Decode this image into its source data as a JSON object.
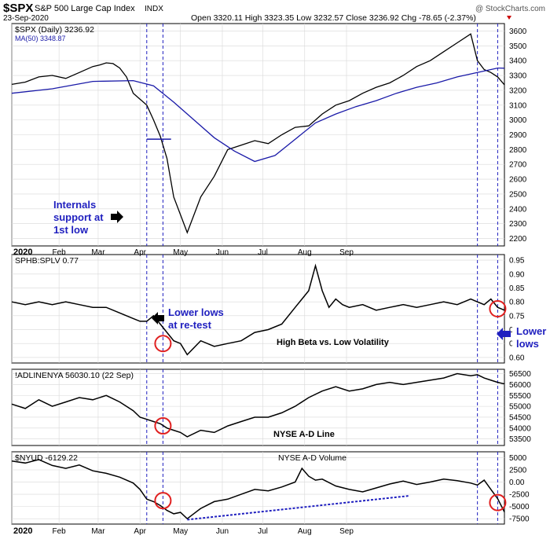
{
  "header": {
    "ticker": "$SPX",
    "name": "S&P 500 Large Cap Index",
    "exchange": "INDX",
    "date": "23-Sep-2020",
    "ohlc": "Open 3320.11  High 3323.35  Low 3232.57  Close 3236.92  Chg -78.65 (-2.37%)",
    "watermark": "@ StockCharts.com"
  },
  "colors": {
    "price": "#000000",
    "ma": "#1a1aa8",
    "annotation": "#1f1fbf",
    "marker": "#e02020",
    "grid": "#d8d8d8"
  },
  "chart_data": [
    {
      "type": "line",
      "id": "spx",
      "legend": [
        "$SPX (Daily) 3236.92",
        "MA(50) 3348.87"
      ],
      "ylim": [
        2150,
        3650
      ],
      "yticks": [
        3600,
        3500,
        3400,
        3300,
        3200,
        3100,
        3000,
        2900,
        2800,
        2700,
        2600,
        2500,
        2400,
        2300,
        2200
      ],
      "series": [
        {
          "name": "$SPX",
          "x": [
            0,
            10,
            20,
            30,
            40,
            50,
            60,
            65,
            70,
            75,
            80,
            85,
            90,
            95,
            100,
            105,
            110,
            115,
            120,
            130,
            140,
            150,
            160,
            170,
            180,
            190,
            200,
            210,
            220,
            230,
            240,
            250,
            260,
            270,
            280,
            290,
            300,
            310,
            320,
            330,
            340,
            345,
            350,
            355,
            360,
            365
          ],
          "values": [
            3240,
            3255,
            3290,
            3300,
            3280,
            3320,
            3360,
            3370,
            3385,
            3380,
            3350,
            3290,
            3180,
            3140,
            3100,
            3000,
            2890,
            2740,
            2480,
            2240,
            2480,
            2620,
            2800,
            2830,
            2860,
            2840,
            2900,
            2950,
            2960,
            3040,
            3100,
            3130,
            3180,
            3220,
            3250,
            3300,
            3360,
            3400,
            3460,
            3520,
            3580,
            3400,
            3340,
            3320,
            3290,
            3237
          ]
        },
        {
          "name": "MA(50)",
          "x": [
            0,
            30,
            60,
            90,
            105,
            120,
            135,
            150,
            165,
            180,
            195,
            210,
            225,
            240,
            255,
            270,
            285,
            300,
            315,
            330,
            345,
            360,
            365
          ],
          "values": [
            3180,
            3210,
            3260,
            3265,
            3230,
            3120,
            3000,
            2880,
            2790,
            2720,
            2760,
            2870,
            2980,
            3040,
            3090,
            3130,
            3180,
            3220,
            3250,
            3290,
            3320,
            3350,
            3349
          ]
        }
      ],
      "hline": {
        "value": 2870,
        "x": [
          100,
          118
        ]
      }
    },
    {
      "type": "line",
      "id": "sphb",
      "legend": [
        "SPHB:SPLV 0.77"
      ],
      "ylim": [
        0.58,
        0.97
      ],
      "yticks": [
        0.95,
        0.9,
        0.85,
        0.8,
        0.75,
        0.7,
        0.65,
        0.6
      ],
      "series": [
        {
          "name": "SPHB:SPLV",
          "x": [
            0,
            10,
            20,
            30,
            40,
            50,
            60,
            70,
            80,
            90,
            95,
            100,
            105,
            110,
            115,
            120,
            125,
            130,
            140,
            150,
            160,
            170,
            180,
            190,
            200,
            210,
            215,
            220,
            225,
            230,
            235,
            240,
            245,
            250,
            260,
            270,
            280,
            290,
            300,
            310,
            320,
            330,
            340,
            345,
            350,
            355,
            360,
            365
          ],
          "values": [
            0.8,
            0.79,
            0.8,
            0.79,
            0.8,
            0.79,
            0.78,
            0.78,
            0.76,
            0.74,
            0.73,
            0.73,
            0.75,
            0.72,
            0.69,
            0.66,
            0.65,
            0.61,
            0.66,
            0.64,
            0.65,
            0.66,
            0.69,
            0.7,
            0.72,
            0.78,
            0.81,
            0.84,
            0.93,
            0.84,
            0.78,
            0.81,
            0.79,
            0.78,
            0.79,
            0.77,
            0.78,
            0.79,
            0.78,
            0.79,
            0.8,
            0.79,
            0.81,
            0.8,
            0.79,
            0.81,
            0.78,
            0.77
          ]
        }
      ],
      "annotations": [
        "Lower lows",
        "at re-test",
        "High Beta vs. Low Volatility"
      ]
    },
    {
      "type": "line",
      "id": "adline",
      "legend": [
        "!ADLINENYA 56030.10 (22 Sep)"
      ],
      "ylim": [
        53200,
        56700
      ],
      "yticks": [
        56500,
        56000,
        55500,
        55000,
        54500,
        54000,
        53500
      ],
      "series": [
        {
          "name": "!ADLINENYA",
          "x": [
            0,
            10,
            20,
            30,
            40,
            50,
            60,
            70,
            80,
            90,
            95,
            100,
            105,
            110,
            115,
            120,
            125,
            130,
            140,
            150,
            160,
            170,
            180,
            190,
            200,
            210,
            220,
            230,
            240,
            250,
            260,
            270,
            280,
            290,
            300,
            310,
            320,
            330,
            340,
            345,
            350,
            355,
            360,
            365
          ],
          "values": [
            55100,
            54900,
            55300,
            55000,
            55200,
            55400,
            55300,
            55500,
            55200,
            54800,
            54500,
            54400,
            54300,
            54200,
            54000,
            53900,
            53800,
            53600,
            53900,
            53800,
            54100,
            54300,
            54500,
            54500,
            54700,
            55000,
            55400,
            55700,
            55900,
            55700,
            55800,
            56000,
            56100,
            56000,
            56100,
            56200,
            56300,
            56500,
            56400,
            56450,
            56300,
            56200,
            56100,
            56030
          ]
        }
      ],
      "annotations": [
        "NYSE A-D Line"
      ]
    },
    {
      "type": "line",
      "id": "nyud",
      "legend": [
        "$NYUD -6129.22"
      ],
      "ylim": [
        -8600,
        6200
      ],
      "yticks": [
        5000,
        2500,
        0,
        -2500,
        -5000,
        -7500
      ],
      "series": [
        {
          "name": "$NYUD",
          "x": [
            0,
            10,
            20,
            30,
            40,
            50,
            60,
            70,
            80,
            90,
            95,
            100,
            105,
            110,
            115,
            120,
            125,
            130,
            140,
            150,
            160,
            170,
            180,
            190,
            200,
            210,
            215,
            220,
            225,
            230,
            240,
            250,
            260,
            270,
            280,
            290,
            300,
            310,
            320,
            330,
            340,
            345,
            350,
            355,
            360,
            365
          ],
          "values": [
            4300,
            3900,
            4600,
            3400,
            2800,
            3500,
            2300,
            1800,
            1000,
            -200,
            -1500,
            -3500,
            -4000,
            -4800,
            -5800,
            -6500,
            -6200,
            -7500,
            -5400,
            -4000,
            -3500,
            -2500,
            -1500,
            -1800,
            -1000,
            0,
            2800,
            1200,
            400,
            600,
            -800,
            -1500,
            -2000,
            -1200,
            -400,
            200,
            -500,
            0,
            600,
            300,
            -200,
            -600,
            400,
            -1500,
            -3400,
            -6129
          ]
        }
      ],
      "trendline": {
        "x": [
          130,
          295
        ],
        "values": [
          -7700,
          -2800
        ]
      },
      "annotations": [
        "NYSE A-D Volume"
      ]
    }
  ],
  "x_axis": {
    "labels": [
      "2020",
      "Feb",
      "Mar",
      "Apr",
      "May",
      "Jun",
      "Jul",
      "Aug",
      "Sep"
    ],
    "positions": [
      0,
      35,
      64,
      95,
      125,
      156,
      186,
      217,
      248
    ],
    "xlim": [
      0,
      365
    ],
    "vlines": [
      100,
      112,
      345,
      360
    ]
  },
  "callouts": {
    "internals": [
      "Internals",
      "support at",
      "1st low"
    ],
    "lower_lows_right": [
      "Lower",
      "lows"
    ]
  },
  "markers": [
    {
      "panel": 1,
      "x": 112,
      "y": 0.65
    },
    {
      "panel": 1,
      "x": 360,
      "y": 0.775
    },
    {
      "panel": 2,
      "x": 112,
      "y": 54100
    },
    {
      "panel": 3,
      "x": 112,
      "y": -3800
    },
    {
      "panel": 3,
      "x": 360,
      "y": -4200
    }
  ]
}
